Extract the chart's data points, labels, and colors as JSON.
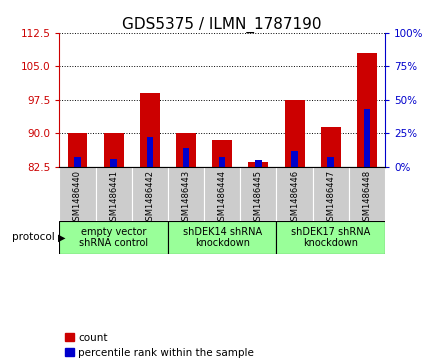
{
  "title": "GDS5375 / ILMN_1787190",
  "samples": [
    "GSM1486440",
    "GSM1486441",
    "GSM1486442",
    "GSM1486443",
    "GSM1486444",
    "GSM1486445",
    "GSM1486446",
    "GSM1486447",
    "GSM1486448"
  ],
  "count_values": [
    90.0,
    90.0,
    99.0,
    90.0,
    88.5,
    83.5,
    97.5,
    91.5,
    108.0
  ],
  "percentile_values": [
    7,
    6,
    22,
    14,
    7,
    5,
    12,
    7,
    43
  ],
  "ylim_left": [
    82.5,
    112.5
  ],
  "yticks_left": [
    82.5,
    90.0,
    97.5,
    105.0,
    112.5
  ],
  "ylim_right": [
    0,
    100
  ],
  "yticks_right": [
    0,
    25,
    50,
    75,
    100
  ],
  "bar_bottom": 82.5,
  "bar_width": 0.55,
  "blue_bar_width": 0.18,
  "count_color": "#cc0000",
  "percentile_color": "#0000cc",
  "groups": [
    {
      "label": "empty vector\nshRNA control",
      "start": 0,
      "end": 3
    },
    {
      "label": "shDEK14 shRNA\nknockdown",
      "start": 3,
      "end": 6
    },
    {
      "label": "shDEK17 shRNA\nknockdown",
      "start": 6,
      "end": 9
    }
  ],
  "group_color": "#99ff99",
  "protocol_label": "protocol",
  "legend_count_label": "count",
  "legend_percentile_label": "percentile rank within the sample",
  "tick_bg_color": "#cccccc",
  "title_fontsize": 11,
  "tick_fontsize": 7.5,
  "sample_fontsize": 6.0,
  "legend_fontsize": 7.5,
  "proto_fontsize": 7.0
}
